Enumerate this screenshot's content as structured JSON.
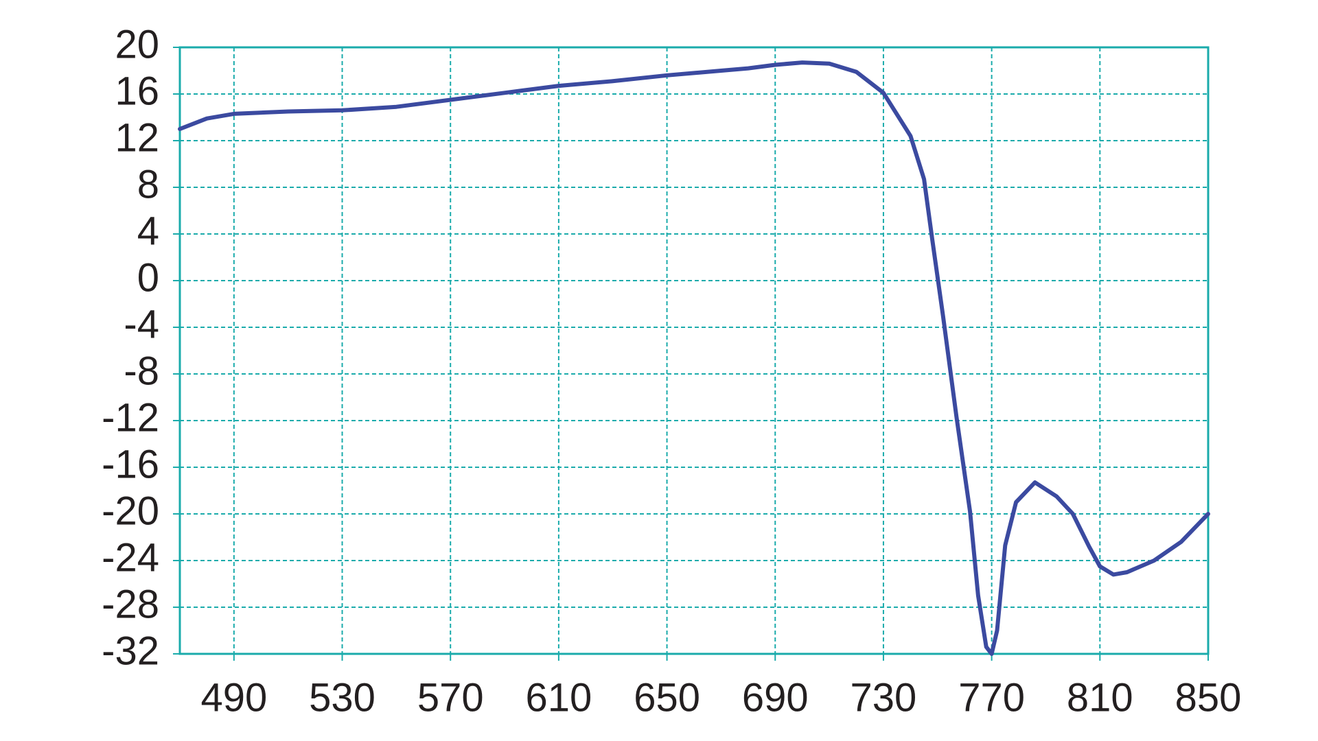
{
  "chart_data": {
    "type": "line",
    "x": [
      470,
      480,
      490,
      510,
      530,
      550,
      570,
      590,
      610,
      630,
      650,
      670,
      680,
      690,
      700,
      710,
      720,
      730,
      740,
      745,
      748,
      752,
      757,
      762,
      765,
      768,
      770,
      772,
      775,
      779,
      786,
      794,
      800,
      806,
      810,
      815,
      820,
      830,
      840,
      850
    ],
    "series": [
      {
        "color": "#3b4aa0",
        "values": [
          13.0,
          13.9,
          14.3,
          14.5,
          14.6,
          14.9,
          15.5,
          16.1,
          16.7,
          17.1,
          17.6,
          18.0,
          18.2,
          18.5,
          18.7,
          18.6,
          17.9,
          16.1,
          12.4,
          8.7,
          3.6,
          -3.0,
          -11.7,
          -19.8,
          -27.0,
          -31.4,
          -32.0,
          -30.0,
          -22.7,
          -19.0,
          -17.3,
          -18.5,
          -20.0,
          -22.8,
          -24.5,
          -25.2,
          -25.0,
          -24.0,
          -22.4,
          -20.0
        ]
      }
    ],
    "xlim": [
      470,
      850
    ],
    "xticks": [
      490,
      530,
      570,
      610,
      650,
      690,
      730,
      770,
      810,
      850
    ],
    "ylim": [
      -32,
      20
    ],
    "yticks": [
      -32,
      -28,
      -24,
      -20,
      -16,
      -12,
      -8,
      -4,
      0,
      4,
      8,
      12,
      16,
      20
    ],
    "grid": true,
    "grid_color": "#1aabab"
  }
}
